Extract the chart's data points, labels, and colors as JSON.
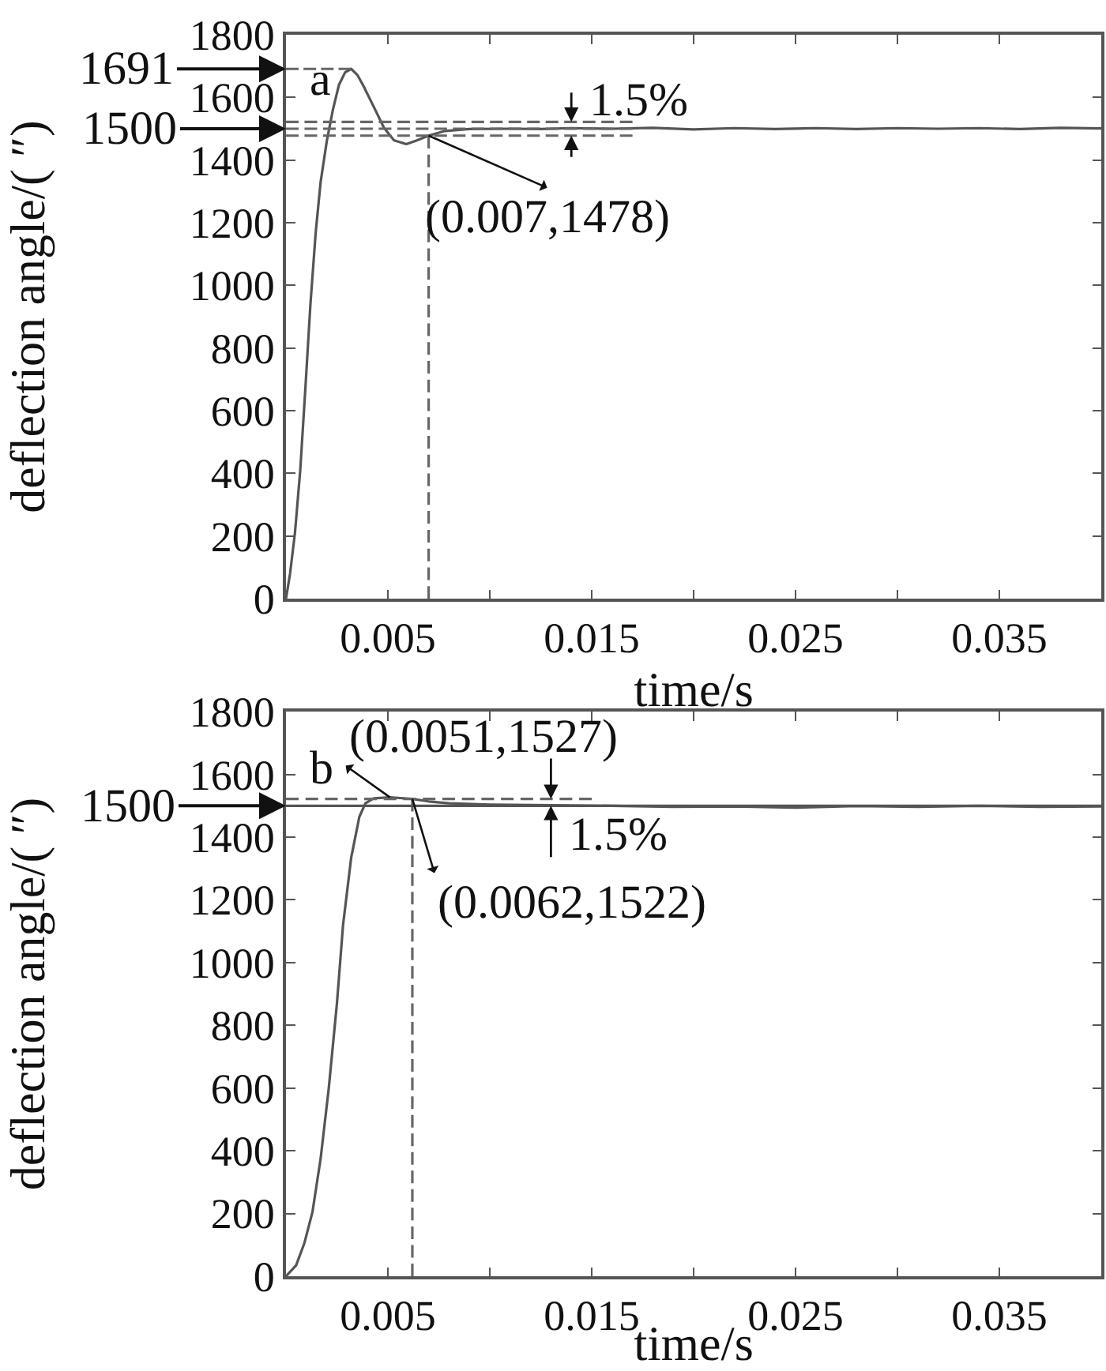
{
  "chart_data": [
    {
      "type": "line",
      "xlabel": "time/s",
      "ylabel": "deflection angle/( ″)",
      "line_style": "solid",
      "xlim": [
        0,
        0.04
      ],
      "xticks": [
        0.005,
        {
          "value": 0.01,
          "label": null
        },
        0.015,
        {
          "value": 0.02,
          "label": null
        },
        0.025,
        {
          "value": 0.03,
          "label": null
        },
        0.035
      ],
      "ylim": [
        0,
        1800
      ],
      "yticks": [
        0,
        200,
        400,
        600,
        800,
        1000,
        1200,
        1400,
        1600,
        1800
      ],
      "series": [
        {
          "color": "#555555",
          "x": [
            0,
            0.0002,
            0.00044,
            0.0007,
            0.00095,
            0.0012,
            0.00146,
            0.0017,
            0.002,
            0.0023,
            0.0026,
            0.0029,
            0.0032,
            0.0035,
            0.0038,
            0.0043,
            0.0048,
            0.0053,
            0.0059,
            0.0064,
            0.007,
            0.0078,
            0.009,
            0.011,
            0.0125,
            0.014,
            0.016,
            0.018,
            0.02,
            0.022,
            0.024,
            0.026,
            0.028,
            0.03,
            0.032,
            0.034,
            0.036,
            0.038,
            0.04
          ],
          "values": [
            0,
            80,
            210,
            410,
            670,
            940,
            1170,
            1330,
            1460,
            1560,
            1640,
            1680,
            1691,
            1672,
            1637,
            1571,
            1504,
            1463,
            1451,
            1462,
            1478,
            1493,
            1499,
            1500,
            1499,
            1502,
            1500,
            1503,
            1498,
            1502,
            1499,
            1502,
            1499,
            1502,
            1500,
            1502,
            1499,
            1503,
            1501
          ]
        },
        {
          "type": "line",
          "line_style": "dashed",
          "color": "#666666",
          "x": [
            0,
            0.0032
          ],
          "values": [
            1691,
            1691
          ]
        },
        {
          "type": "line",
          "line_style": "dashed",
          "color": "#666666",
          "x": [
            0,
            0.017
          ],
          "values": [
            1522,
            1522
          ]
        },
        {
          "type": "line",
          "line_style": "dashed",
          "color": "#666666",
          "x": [
            0,
            0.017
          ],
          "values": [
            1500,
            1500
          ]
        },
        {
          "type": "line",
          "line_style": "dashed",
          "color": "#666666",
          "x": [
            0,
            0.017
          ],
          "values": [
            1478,
            1478
          ]
        },
        {
          "type": "line",
          "line_style": "dashed",
          "color": "#666666",
          "x": [
            0.007,
            0.007
          ],
          "values": [
            0,
            1478
          ]
        }
      ],
      "annotations": [
        "a",
        {
          "text": "1691",
          "x": 0,
          "y": 1691
        },
        {
          "text": "1500",
          "x": 0,
          "y": 1500
        },
        {
          "text": "(0.007,1478)",
          "x": 0.007,
          "y": 1478
        },
        {
          "text": "1.5%",
          "x": 0.014,
          "y": 1522
        }
      ]
    },
    {
      "type": "line",
      "xlabel": "time/s",
      "ylabel": "deflection angle/( ″)",
      "line_style": "solid",
      "xlim": [
        0,
        0.04
      ],
      "xticks": [
        0.005,
        {
          "value": 0.01,
          "label": null
        },
        0.015,
        {
          "value": 0.02,
          "label": null
        },
        0.025,
        {
          "value": 0.03,
          "label": null
        },
        0.035
      ],
      "ylim": [
        0,
        1800
      ],
      "yticks": [
        0,
        200,
        400,
        600,
        800,
        1000,
        1200,
        1400,
        1600,
        1800
      ],
      "series": [
        {
          "color": "#555555",
          "x": [
            0,
            0.0005,
            0.0009,
            0.0013,
            0.0017,
            0.0021,
            0.0025,
            0.0028,
            0.0032,
            0.0036,
            0.0039,
            0.0043,
            0.0051,
            0.0062,
            0.007,
            0.008,
            0.01,
            0.013,
            0.016,
            0.019,
            0.022,
            0.025,
            0.028,
            0.031,
            0.034,
            0.037,
            0.04
          ],
          "values": [
            0,
            35,
            105,
            205,
            375,
            600,
            870,
            1120,
            1335,
            1465,
            1508,
            1524,
            1527,
            1522,
            1514,
            1508,
            1504,
            1502,
            1500,
            1497,
            1498,
            1494,
            1499,
            1497,
            1500,
            1497,
            1498
          ]
        },
        {
          "type": "line",
          "line_style": "dashed",
          "color": "#666666",
          "x": [
            0,
            0.015
          ],
          "values": [
            1522,
            1522
          ]
        },
        {
          "type": "line",
          "line_style": "dashed",
          "color": "#666666",
          "x": [
            0.0062,
            0.0062
          ],
          "values": [
            0,
            1522
          ]
        }
      ],
      "ref_lines": [
        {
          "axis": "y",
          "value": 1500,
          "color": "#555555",
          "line_style": "solid"
        }
      ],
      "annotations": [
        "b",
        {
          "text": "(0.0051,1527)",
          "x": 0.0051,
          "y": 1527
        },
        {
          "text": "(0.0062,1522)",
          "x": 0.0062,
          "y": 1522
        },
        {
          "text": "1500",
          "x": 0,
          "y": 1500
        },
        {
          "text": "1.5%",
          "x": 0.013,
          "y": 1522
        }
      ]
    }
  ]
}
